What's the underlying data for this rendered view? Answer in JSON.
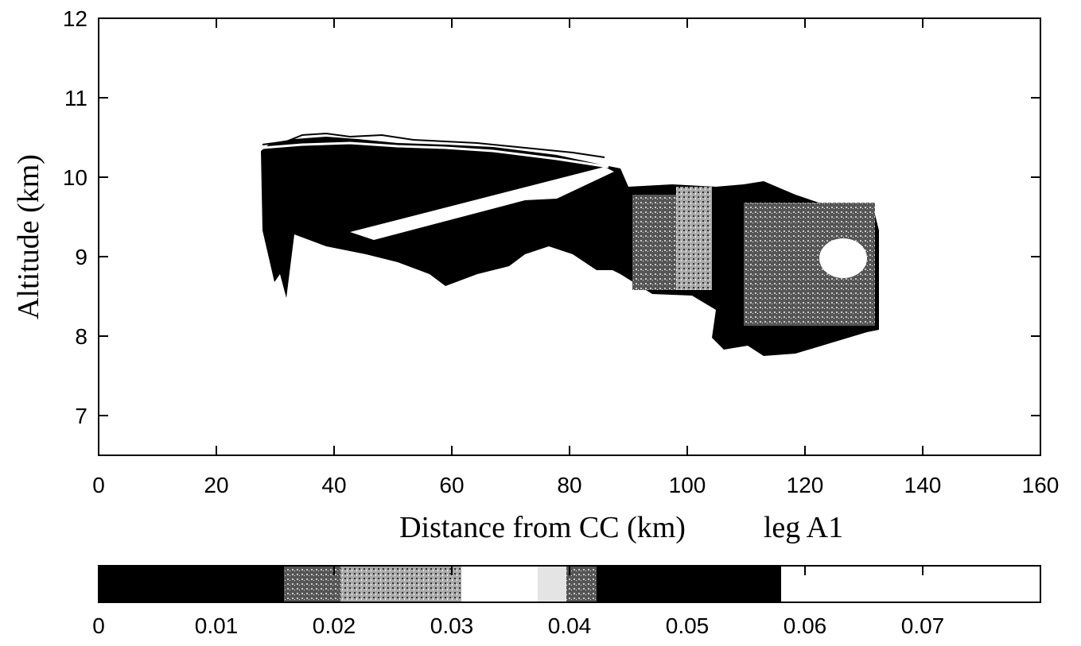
{
  "chart_data": {
    "type": "heatmap",
    "xlabel": "Distance from CC (km)",
    "ylabel": "Altitude (km)",
    "annotation": "leg A1",
    "xlim": [
      0,
      160
    ],
    "xticks": [
      0,
      20,
      40,
      60,
      80,
      100,
      120,
      140,
      160
    ],
    "ylim": [
      6.5,
      12
    ],
    "yticks": [
      7,
      8,
      9,
      10,
      11,
      12
    ],
    "colorbar": {
      "lim": [
        0,
        0.08
      ],
      "ticks": [
        0,
        0.01,
        0.02,
        0.03,
        0.04,
        0.05,
        0.06,
        0.07
      ]
    }
  }
}
